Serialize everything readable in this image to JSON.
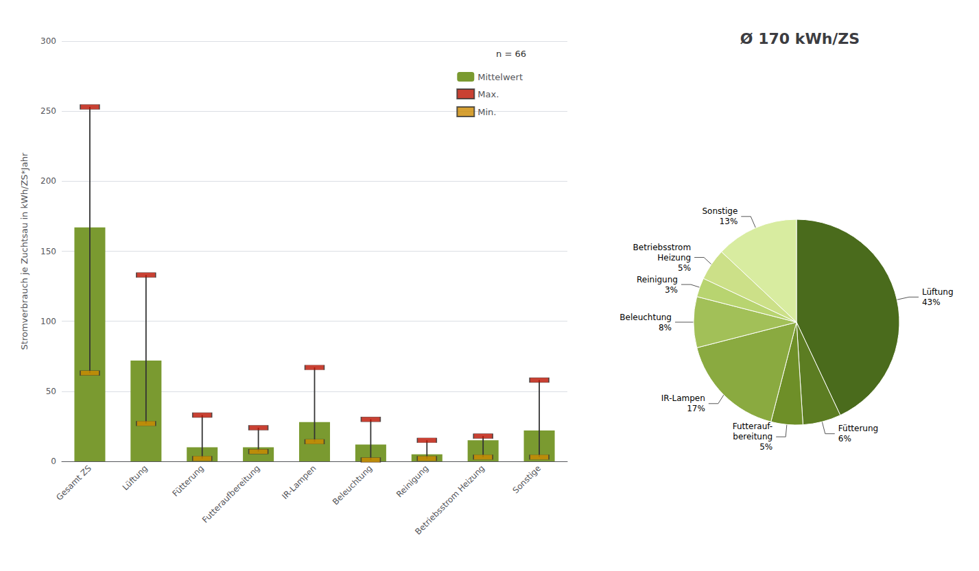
{
  "chart_data": [
    {
      "type": "bar",
      "categories": [
        "Gesamt ZS",
        "Lüftung",
        "Fütterung",
        "Futteraufbereitung",
        "IR-Lampen",
        "Beleuchtung",
        "Reinigung",
        "Betriebsstrom Heizung",
        "Sonstige"
      ],
      "ylabel": "Stromverbrauch je Zuchtsau in kWh/ZS*Jahr",
      "ylim": [
        0,
        300
      ],
      "yticks": [
        0,
        50,
        100,
        150,
        200,
        250,
        300
      ],
      "grid": true,
      "legend": "upper right",
      "annotation": "n = 66",
      "series": [
        {
          "name": "Mittelwert",
          "type": "bar",
          "color": "#7a9a30",
          "values": [
            167,
            72,
            10,
            10,
            28,
            12,
            5,
            15,
            22
          ]
        },
        {
          "name": "Max.",
          "type": "scatter",
          "marker": "rect",
          "color": "#bb1100",
          "values": [
            253,
            133,
            33,
            24,
            67,
            30,
            15,
            18,
            58
          ]
        },
        {
          "name": "Min.",
          "type": "scatter",
          "marker": "rect",
          "color": "#cc8800",
          "values": [
            63,
            27,
            2,
            7,
            14,
            1,
            2,
            3,
            3
          ]
        }
      ]
    },
    {
      "type": "pie",
      "title": "Ø 170 kWh/ZS",
      "categories": [
        "Lüftung",
        "Fütterung",
        "Futterauf-\nbereitung",
        "IR-Lampen",
        "Beleuchtung",
        "Reinigung",
        "Betriebsstrom\nHeizung",
        "Sonstige"
      ],
      "values": [
        43,
        6,
        5,
        17,
        8,
        3,
        5,
        13
      ],
      "value_labels": [
        "43%",
        "6%",
        "5%",
        "17%",
        "8%",
        "3%",
        "5%",
        "13%"
      ],
      "colors": [
        "#4a6b1c",
        "#5c7d22",
        "#6e8f28",
        "#8aaa40",
        "#a2c058",
        "#b8d470",
        "#cce088",
        "#d8eca0"
      ],
      "data_labels": true
    }
  ]
}
